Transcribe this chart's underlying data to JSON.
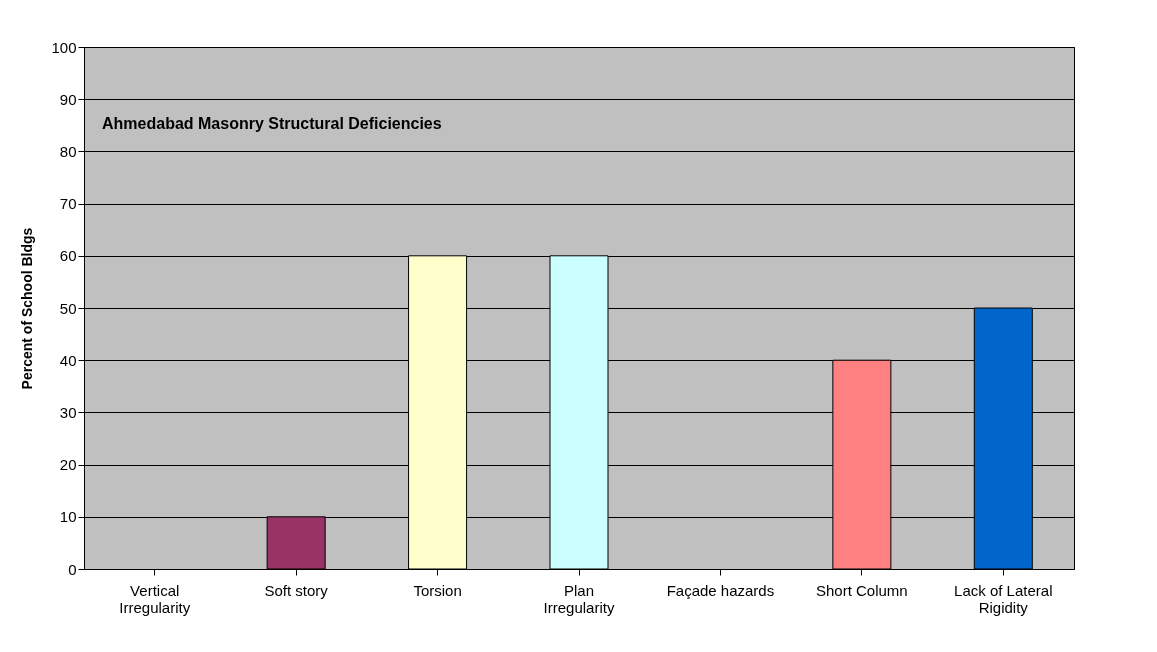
{
  "chart_data": {
    "type": "bar",
    "title": "Ahmedabad Masonry Structural Deficiencies",
    "ylabel": "Percent of School Bldgs",
    "categories": [
      "Vertical Irregularity",
      "Soft story",
      "Torsion",
      "Plan Irregularity",
      "Façade hazards",
      "Short Column",
      "Lack of Lateral Rigidity"
    ],
    "values": [
      0,
      10,
      60,
      60,
      0,
      40,
      50
    ],
    "colors": [
      "#9999ff",
      "#993366",
      "#ffffcc",
      "#ccffff",
      "#660066",
      "#ff8080",
      "#0066cc"
    ],
    "ylim": [
      0,
      100
    ],
    "yticks": [
      0,
      10,
      20,
      30,
      40,
      50,
      60,
      70,
      80,
      90,
      100
    ],
    "grid": "y"
  }
}
